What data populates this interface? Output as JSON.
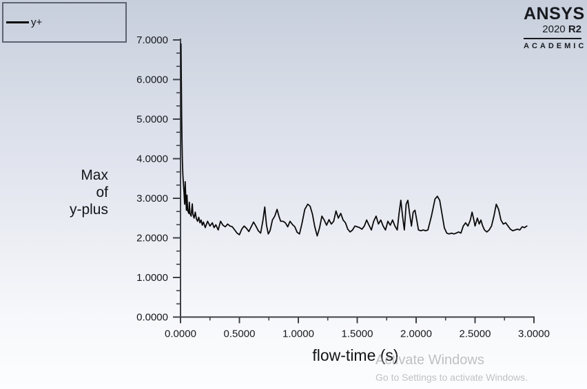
{
  "legend": {
    "series_label": "y+",
    "line_color": "#000000"
  },
  "branding": {
    "name": "ANSYS",
    "version": "2020",
    "release": "R2",
    "edition": "ACADEMIC"
  },
  "watermark": {
    "line1": "Activate Windows",
    "line2": "Go to Settings to activate Windows."
  },
  "chart_data": {
    "type": "line",
    "title": "",
    "xlabel": "flow-time (s)",
    "ylabel": "Max of y-plus",
    "ylabel_lines": [
      "Max",
      "of",
      "y-plus"
    ],
    "xlim": [
      0,
      3
    ],
    "ylim": [
      0,
      7
    ],
    "x_tick_values": [
      0,
      0.5,
      1.0,
      1.5,
      2.0,
      2.5,
      3.0
    ],
    "x_tick_labels": [
      "0.0000",
      "0.5000",
      "1.0000",
      "1.5000",
      "2.0000",
      "2.5000",
      "3.0000"
    ],
    "y_tick_values": [
      0,
      1,
      2,
      3,
      4,
      5,
      6,
      7
    ],
    "y_tick_labels": [
      "0.0000",
      "1.0000",
      "2.0000",
      "3.0000",
      "4.0000",
      "5.0000",
      "6.0000",
      "7.0000"
    ],
    "y_minor_per_major": 2,
    "x_minor_per_major": 1,
    "grid": false,
    "legend_position": "top-left",
    "axis_color": "#3d4046",
    "line_color": "#0a0a0a",
    "series": [
      {
        "name": "y+",
        "points": [
          [
            0.004,
            6.9
          ],
          [
            0.006,
            6.3
          ],
          [
            0.008,
            5.6
          ],
          [
            0.01,
            5.0
          ],
          [
            0.013,
            4.4
          ],
          [
            0.016,
            3.95
          ],
          [
            0.02,
            3.6
          ],
          [
            0.025,
            3.35
          ],
          [
            0.03,
            3.15
          ],
          [
            0.035,
            2.85
          ],
          [
            0.04,
            3.42
          ],
          [
            0.045,
            3.0
          ],
          [
            0.05,
            2.7
          ],
          [
            0.055,
            3.08
          ],
          [
            0.06,
            2.7
          ],
          [
            0.07,
            2.62
          ],
          [
            0.075,
            2.9
          ],
          [
            0.08,
            2.62
          ],
          [
            0.09,
            2.55
          ],
          [
            0.1,
            2.86
          ],
          [
            0.105,
            2.6
          ],
          [
            0.115,
            2.5
          ],
          [
            0.125,
            2.65
          ],
          [
            0.135,
            2.48
          ],
          [
            0.145,
            2.42
          ],
          [
            0.155,
            2.52
          ],
          [
            0.165,
            2.38
          ],
          [
            0.175,
            2.45
          ],
          [
            0.185,
            2.32
          ],
          [
            0.195,
            2.4
          ],
          [
            0.21,
            2.26
          ],
          [
            0.23,
            2.42
          ],
          [
            0.25,
            2.3
          ],
          [
            0.27,
            2.38
          ],
          [
            0.285,
            2.26
          ],
          [
            0.3,
            2.33
          ],
          [
            0.32,
            2.2
          ],
          [
            0.34,
            2.42
          ],
          [
            0.36,
            2.32
          ],
          [
            0.38,
            2.28
          ],
          [
            0.4,
            2.35
          ],
          [
            0.42,
            2.3
          ],
          [
            0.44,
            2.28
          ],
          [
            0.46,
            2.2
          ],
          [
            0.48,
            2.12
          ],
          [
            0.5,
            2.08
          ],
          [
            0.52,
            2.22
          ],
          [
            0.54,
            2.3
          ],
          [
            0.56,
            2.24
          ],
          [
            0.58,
            2.16
          ],
          [
            0.6,
            2.28
          ],
          [
            0.62,
            2.4
          ],
          [
            0.64,
            2.3
          ],
          [
            0.66,
            2.18
          ],
          [
            0.68,
            2.12
          ],
          [
            0.7,
            2.45
          ],
          [
            0.715,
            2.78
          ],
          [
            0.73,
            2.32
          ],
          [
            0.745,
            2.1
          ],
          [
            0.76,
            2.18
          ],
          [
            0.78,
            2.45
          ],
          [
            0.8,
            2.55
          ],
          [
            0.82,
            2.72
          ],
          [
            0.835,
            2.55
          ],
          [
            0.85,
            2.42
          ],
          [
            0.87,
            2.42
          ],
          [
            0.89,
            2.38
          ],
          [
            0.91,
            2.28
          ],
          [
            0.93,
            2.42
          ],
          [
            0.95,
            2.34
          ],
          [
            0.97,
            2.28
          ],
          [
            0.99,
            2.14
          ],
          [
            1.01,
            2.1
          ],
          [
            1.03,
            2.35
          ],
          [
            1.055,
            2.72
          ],
          [
            1.08,
            2.85
          ],
          [
            1.1,
            2.8
          ],
          [
            1.12,
            2.6
          ],
          [
            1.14,
            2.28
          ],
          [
            1.16,
            2.05
          ],
          [
            1.18,
            2.25
          ],
          [
            1.2,
            2.55
          ],
          [
            1.22,
            2.45
          ],
          [
            1.24,
            2.32
          ],
          [
            1.26,
            2.46
          ],
          [
            1.28,
            2.35
          ],
          [
            1.3,
            2.42
          ],
          [
            1.32,
            2.68
          ],
          [
            1.34,
            2.5
          ],
          [
            1.36,
            2.62
          ],
          [
            1.38,
            2.45
          ],
          [
            1.4,
            2.38
          ],
          [
            1.42,
            2.22
          ],
          [
            1.44,
            2.15
          ],
          [
            1.46,
            2.2
          ],
          [
            1.48,
            2.3
          ],
          [
            1.5,
            2.28
          ],
          [
            1.52,
            2.26
          ],
          [
            1.54,
            2.22
          ],
          [
            1.56,
            2.3
          ],
          [
            1.58,
            2.45
          ],
          [
            1.6,
            2.32
          ],
          [
            1.62,
            2.2
          ],
          [
            1.64,
            2.42
          ],
          [
            1.66,
            2.55
          ],
          [
            1.68,
            2.35
          ],
          [
            1.7,
            2.45
          ],
          [
            1.72,
            2.3
          ],
          [
            1.74,
            2.2
          ],
          [
            1.76,
            2.42
          ],
          [
            1.78,
            2.32
          ],
          [
            1.8,
            2.45
          ],
          [
            1.82,
            2.3
          ],
          [
            1.84,
            2.2
          ],
          [
            1.855,
            2.62
          ],
          [
            1.87,
            2.95
          ],
          [
            1.885,
            2.55
          ],
          [
            1.9,
            2.2
          ],
          [
            1.915,
            2.85
          ],
          [
            1.93,
            2.95
          ],
          [
            1.945,
            2.6
          ],
          [
            1.96,
            2.3
          ],
          [
            1.975,
            2.65
          ],
          [
            1.99,
            2.7
          ],
          [
            2.005,
            2.45
          ],
          [
            2.02,
            2.2
          ],
          [
            2.04,
            2.18
          ],
          [
            2.06,
            2.2
          ],
          [
            2.08,
            2.18
          ],
          [
            2.1,
            2.2
          ],
          [
            2.13,
            2.55
          ],
          [
            2.16,
            2.98
          ],
          [
            2.18,
            3.05
          ],
          [
            2.2,
            2.95
          ],
          [
            2.22,
            2.6
          ],
          [
            2.24,
            2.25
          ],
          [
            2.26,
            2.12
          ],
          [
            2.28,
            2.1
          ],
          [
            2.3,
            2.12
          ],
          [
            2.32,
            2.1
          ],
          [
            2.34,
            2.12
          ],
          [
            2.36,
            2.15
          ],
          [
            2.38,
            2.12
          ],
          [
            2.4,
            2.3
          ],
          [
            2.42,
            2.38
          ],
          [
            2.44,
            2.3
          ],
          [
            2.46,
            2.45
          ],
          [
            2.475,
            2.65
          ],
          [
            2.49,
            2.45
          ],
          [
            2.5,
            2.3
          ],
          [
            2.52,
            2.5
          ],
          [
            2.535,
            2.35
          ],
          [
            2.55,
            2.45
          ],
          [
            2.565,
            2.3
          ],
          [
            2.58,
            2.2
          ],
          [
            2.6,
            2.15
          ],
          [
            2.62,
            2.2
          ],
          [
            2.64,
            2.3
          ],
          [
            2.66,
            2.55
          ],
          [
            2.68,
            2.85
          ],
          [
            2.7,
            2.72
          ],
          [
            2.72,
            2.45
          ],
          [
            2.74,
            2.35
          ],
          [
            2.76,
            2.38
          ],
          [
            2.78,
            2.3
          ],
          [
            2.8,
            2.22
          ],
          [
            2.82,
            2.18
          ],
          [
            2.84,
            2.2
          ],
          [
            2.86,
            2.22
          ],
          [
            2.88,
            2.2
          ],
          [
            2.9,
            2.28
          ],
          [
            2.92,
            2.26
          ],
          [
            2.94,
            2.3
          ]
        ]
      }
    ]
  }
}
